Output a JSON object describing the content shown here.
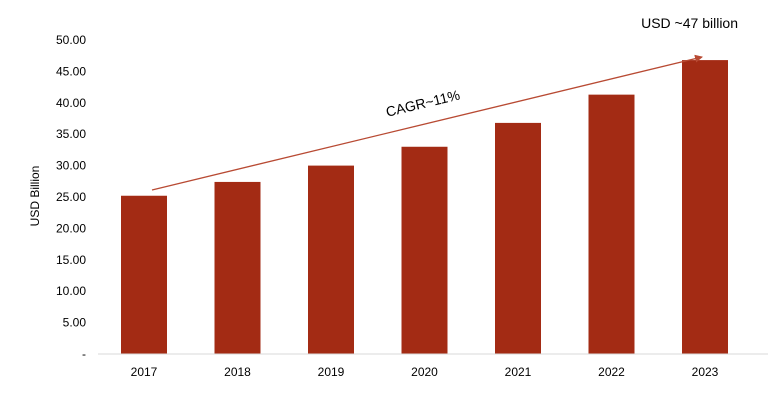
{
  "chart_data": {
    "type": "bar",
    "categories": [
      "2017",
      "2018",
      "2019",
      "2020",
      "2021",
      "2022",
      "2023"
    ],
    "values": [
      25.2,
      27.4,
      30.0,
      33.0,
      36.8,
      41.3,
      46.8
    ],
    "title": "",
    "xlabel": "",
    "ylabel": "USD Billion",
    "ylim": [
      0,
      50
    ],
    "yticks": [
      0,
      5,
      10,
      15,
      20,
      25,
      30,
      35,
      40,
      45,
      50
    ],
    "ytick_labels": [
      "-",
      "5.00",
      "10.00",
      "15.00",
      "20.00",
      "25.00",
      "30.00",
      "35.00",
      "40.00",
      "45.00",
      "50.00"
    ],
    "grid": false,
    "bar_color": "#a32b14",
    "arrow_color": "#b84a33",
    "annotations": {
      "cagr": "CAGR~11%",
      "top_value": "USD ~47 billion"
    }
  }
}
